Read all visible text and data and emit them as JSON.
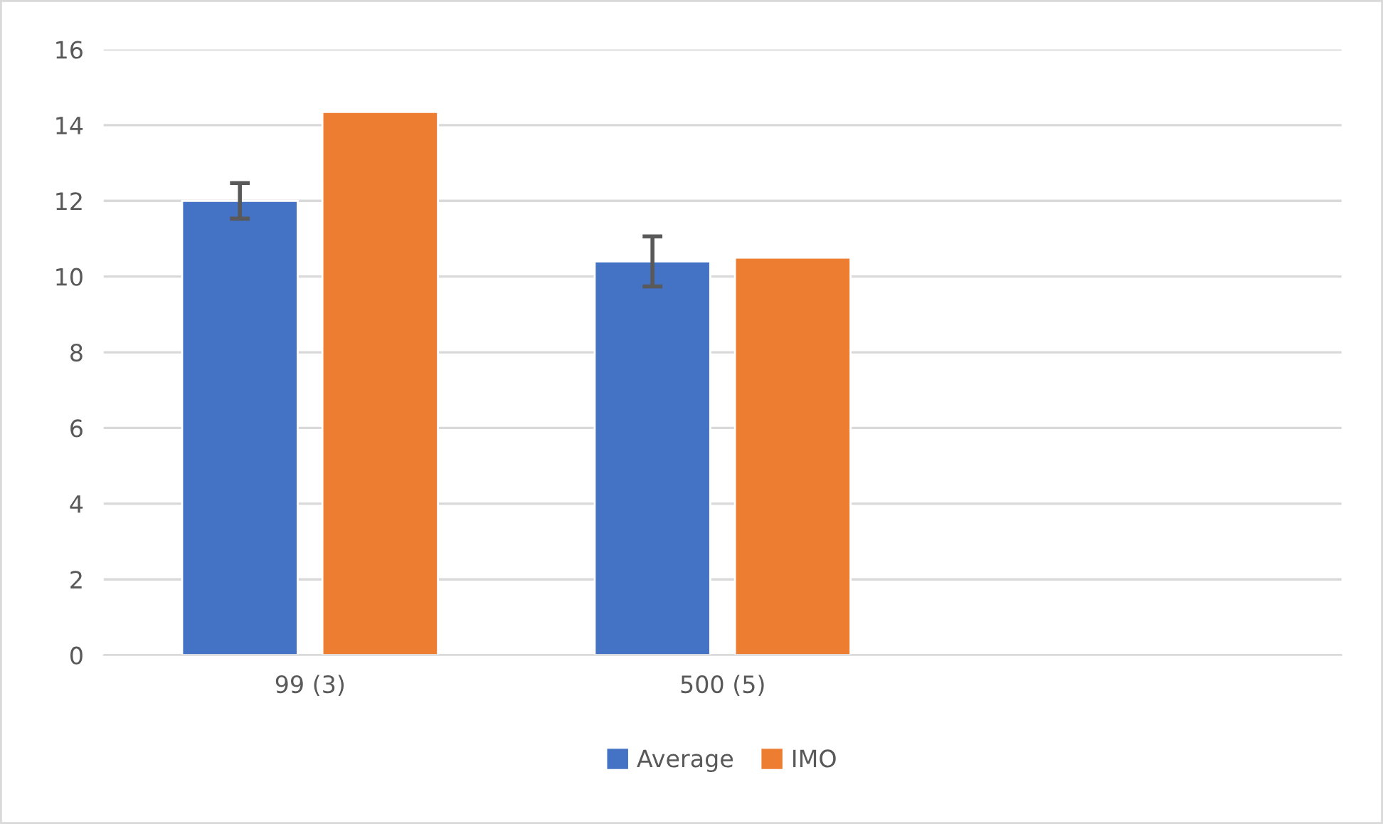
{
  "chart_data": {
    "type": "bar",
    "categories": [
      "99 (3)",
      "500 (5)",
      null
    ],
    "series": [
      {
        "name": "Average",
        "color": "#4472c4",
        "values": [
          12.0,
          10.4,
          null
        ],
        "errors": [
          0.47,
          0.66,
          null
        ]
      },
      {
        "name": "IMO",
        "color": "#ed7d31",
        "values": [
          14.35,
          10.5,
          null
        ]
      }
    ],
    "ylim": [
      0,
      16
    ],
    "yticks": [
      0,
      2,
      4,
      6,
      8,
      10,
      12,
      14,
      16
    ],
    "grid": "y",
    "legend": "bottom"
  }
}
